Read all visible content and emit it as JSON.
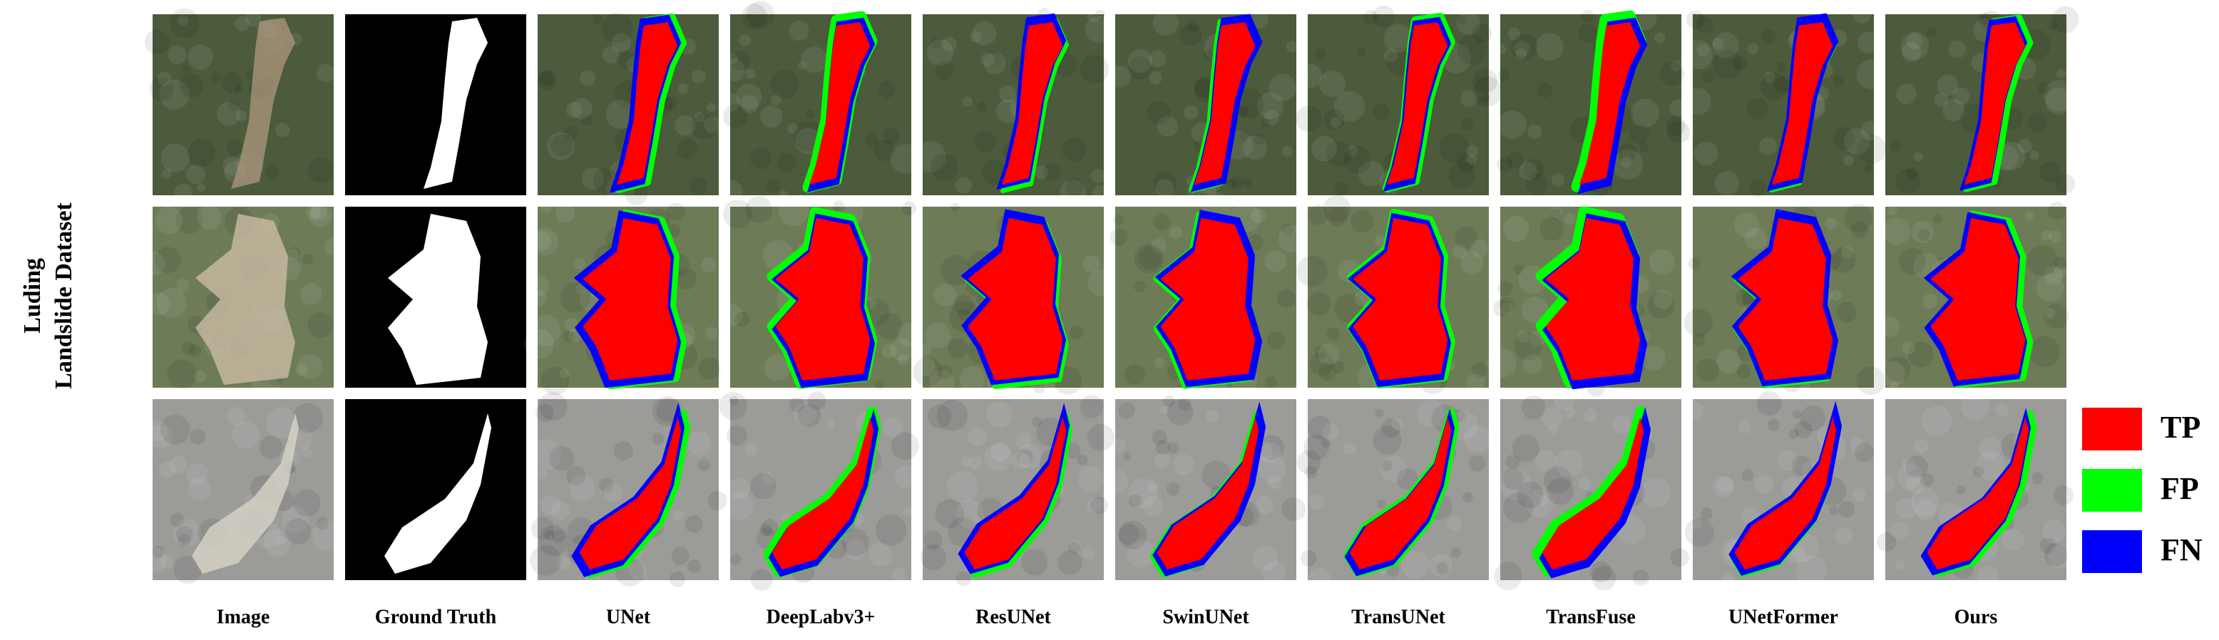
{
  "row_label_lines": [
    "Luding",
    "Landslide Dataset"
  ],
  "columns": [
    "Image",
    "Ground Truth",
    "UNet",
    "DeepLabv3+",
    "ResUNet",
    "SwinUNet",
    "TransUNet",
    "TransFuse",
    "UNetFormer",
    "Ours"
  ],
  "legend": [
    {
      "label": "TP",
      "color": "#ff0000"
    },
    {
      "label": "FP",
      "color": "#00ff00"
    },
    {
      "label": "FN",
      "color": "#0000ff"
    }
  ]
}
